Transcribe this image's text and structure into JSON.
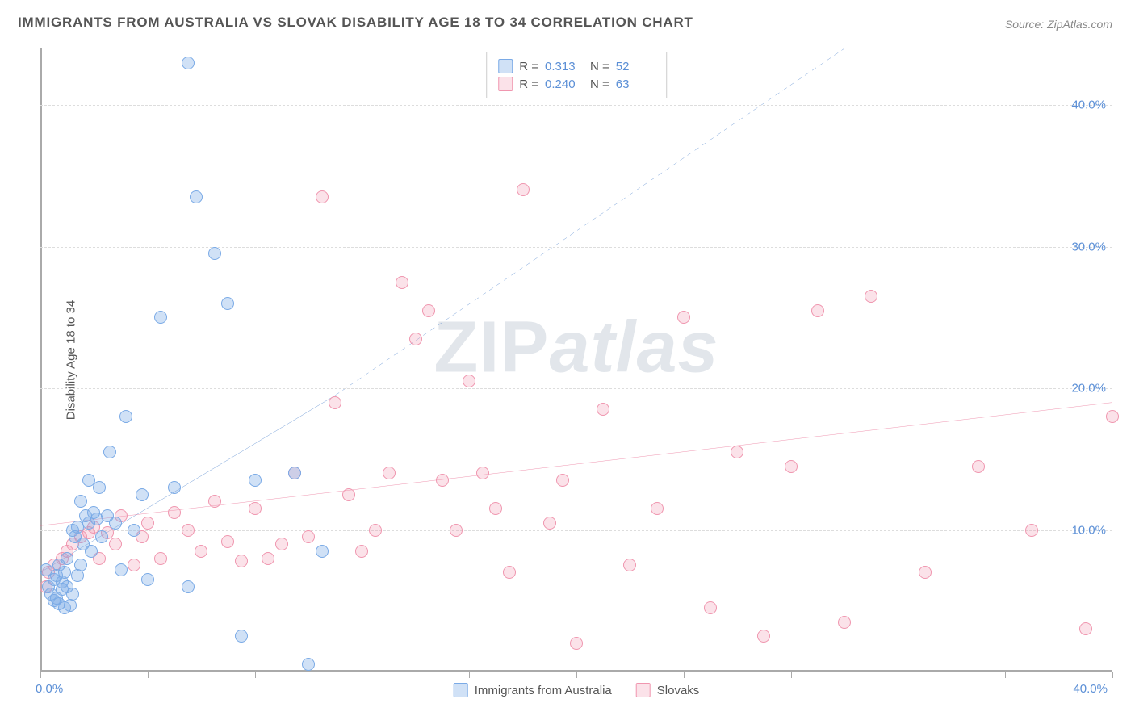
{
  "title": "IMMIGRANTS FROM AUSTRALIA VS SLOVAK DISABILITY AGE 18 TO 34 CORRELATION CHART",
  "source": "Source: ZipAtlas.com",
  "ylabel": "Disability Age 18 to 34",
  "watermark_prefix": "ZIP",
  "watermark_suffix": "atlas",
  "chart": {
    "type": "scatter",
    "xlim": [
      0,
      40
    ],
    "ylim": [
      0,
      44
    ],
    "x_tick_positions_pct": [
      0,
      4,
      8,
      12,
      16,
      20,
      24,
      28,
      32,
      36,
      40
    ],
    "x_label_min": "0.0%",
    "x_label_max": "40.0%",
    "y_gridlines": [
      {
        "value": 10,
        "label": "10.0%"
      },
      {
        "value": 20,
        "label": "20.0%"
      },
      {
        "value": 30,
        "label": "30.0%"
      },
      {
        "value": 40,
        "label": "40.0%"
      }
    ],
    "background_color": "#ffffff",
    "grid_color": "#dddddd",
    "axis_color": "#aaaaaa",
    "label_color": "#5b8fd6",
    "text_color": "#555555",
    "point_radius": 8
  },
  "series": {
    "blue": {
      "label": "Immigrants from Australia",
      "fill": "rgba(120,170,230,0.35)",
      "stroke": "#7aaae6",
      "R": "0.313",
      "N": "52",
      "trend": {
        "solid": {
          "x1": 0,
          "y1": 7,
          "x2": 11,
          "y2": 19.5
        },
        "dashed": {
          "x1": 11,
          "y1": 19.5,
          "x2": 30,
          "y2": 44
        },
        "stroke": "#3e78c7",
        "width": 2.5
      },
      "points": [
        [
          0.2,
          7.2
        ],
        [
          0.3,
          6.0
        ],
        [
          0.4,
          5.5
        ],
        [
          0.5,
          5.0
        ],
        [
          0.5,
          6.5
        ],
        [
          0.6,
          5.2
        ],
        [
          0.6,
          6.8
        ],
        [
          0.7,
          4.8
        ],
        [
          0.7,
          7.5
        ],
        [
          0.8,
          5.8
        ],
        [
          0.8,
          6.3
        ],
        [
          0.9,
          7.0
        ],
        [
          0.9,
          4.5
        ],
        [
          1.0,
          6.0
        ],
        [
          1.0,
          8.0
        ],
        [
          1.1,
          4.7
        ],
        [
          1.2,
          5.5
        ],
        [
          1.2,
          10.0
        ],
        [
          1.3,
          9.5
        ],
        [
          1.4,
          6.8
        ],
        [
          1.4,
          10.2
        ],
        [
          1.5,
          7.5
        ],
        [
          1.5,
          12.0
        ],
        [
          1.6,
          9.0
        ],
        [
          1.7,
          11.0
        ],
        [
          1.8,
          10.5
        ],
        [
          1.8,
          13.5
        ],
        [
          1.9,
          8.5
        ],
        [
          2.0,
          11.2
        ],
        [
          2.1,
          10.8
        ],
        [
          2.2,
          13.0
        ],
        [
          2.3,
          9.5
        ],
        [
          2.5,
          11.0
        ],
        [
          2.6,
          15.5
        ],
        [
          2.8,
          10.5
        ],
        [
          3.0,
          7.2
        ],
        [
          3.2,
          18.0
        ],
        [
          3.5,
          10.0
        ],
        [
          3.8,
          12.5
        ],
        [
          4.0,
          6.5
        ],
        [
          4.5,
          25.0
        ],
        [
          5.0,
          13.0
        ],
        [
          5.5,
          6.0
        ],
        [
          5.8,
          33.5
        ],
        [
          5.5,
          43.0
        ],
        [
          6.5,
          29.5
        ],
        [
          7.0,
          26.0
        ],
        [
          7.5,
          2.5
        ],
        [
          8.0,
          13.5
        ],
        [
          9.5,
          14.0
        ],
        [
          10.0,
          0.5
        ],
        [
          10.5,
          8.5
        ]
      ]
    },
    "pink": {
      "label": "Slovaks",
      "fill": "rgba(240,150,175,0.28)",
      "stroke": "#f096af",
      "R": "0.240",
      "N": "63",
      "trend": {
        "solid": {
          "x1": 0,
          "y1": 10.3,
          "x2": 40,
          "y2": 19.0
        },
        "stroke": "#e86a8f",
        "width": 2.5
      },
      "points": [
        [
          0.2,
          6.0
        ],
        [
          0.3,
          7.0
        ],
        [
          0.5,
          7.5
        ],
        [
          0.8,
          8.0
        ],
        [
          1.0,
          8.5
        ],
        [
          1.2,
          9.0
        ],
        [
          1.5,
          9.5
        ],
        [
          1.8,
          9.8
        ],
        [
          2.0,
          10.2
        ],
        [
          2.2,
          8.0
        ],
        [
          2.5,
          9.8
        ],
        [
          2.8,
          9.0
        ],
        [
          3.0,
          11.0
        ],
        [
          3.5,
          7.5
        ],
        [
          3.8,
          9.5
        ],
        [
          4.0,
          10.5
        ],
        [
          4.5,
          8.0
        ],
        [
          5.0,
          11.2
        ],
        [
          5.5,
          10.0
        ],
        [
          6.0,
          8.5
        ],
        [
          6.5,
          12.0
        ],
        [
          7.0,
          9.2
        ],
        [
          7.5,
          7.8
        ],
        [
          8.0,
          11.5
        ],
        [
          8.5,
          8.0
        ],
        [
          9.0,
          9.0
        ],
        [
          9.5,
          14.0
        ],
        [
          10.0,
          9.5
        ],
        [
          10.5,
          33.5
        ],
        [
          11.0,
          19.0
        ],
        [
          11.5,
          12.5
        ],
        [
          12.0,
          8.5
        ],
        [
          12.5,
          10.0
        ],
        [
          13.0,
          14.0
        ],
        [
          13.5,
          27.5
        ],
        [
          14.0,
          23.5
        ],
        [
          14.5,
          25.5
        ],
        [
          15.0,
          13.5
        ],
        [
          15.5,
          10.0
        ],
        [
          16.0,
          20.5
        ],
        [
          16.5,
          14.0
        ],
        [
          17.0,
          11.5
        ],
        [
          17.5,
          7.0
        ],
        [
          18.0,
          34.0
        ],
        [
          19.0,
          10.5
        ],
        [
          19.5,
          13.5
        ],
        [
          20.0,
          2.0
        ],
        [
          21.0,
          18.5
        ],
        [
          22.0,
          7.5
        ],
        [
          23.0,
          11.5
        ],
        [
          24.0,
          25.0
        ],
        [
          25.0,
          4.5
        ],
        [
          26.0,
          15.5
        ],
        [
          27.0,
          2.5
        ],
        [
          28.0,
          14.5
        ],
        [
          29.0,
          25.5
        ],
        [
          30.0,
          3.5
        ],
        [
          31.0,
          26.5
        ],
        [
          33.0,
          7.0
        ],
        [
          35.0,
          14.5
        ],
        [
          37.0,
          10.0
        ],
        [
          39.0,
          3.0
        ],
        [
          40.0,
          18.0
        ]
      ]
    }
  },
  "legend_top": {
    "R_label": "R =",
    "N_label": "N ="
  }
}
